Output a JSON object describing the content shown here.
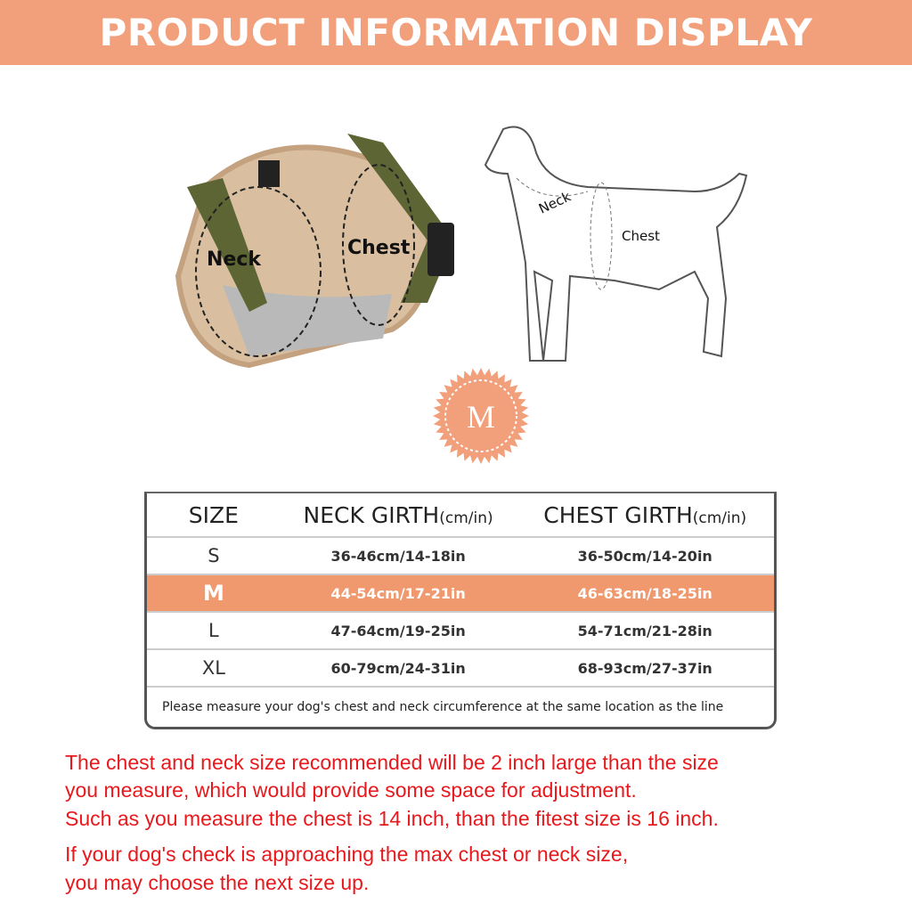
{
  "banner": {
    "title": "PRODUCT INFORMATION DISPLAY",
    "color": "#f2a07b"
  },
  "harness_labels": {
    "neck": "Neck",
    "chest": "Chest"
  },
  "dog_labels": {
    "neck": "Neck",
    "chest": "Chest"
  },
  "badge": {
    "label": "M",
    "color": "#f2a07b"
  },
  "size_table": {
    "headers": {
      "size": "SIZE",
      "neck": "NECK GIRTH",
      "neck_unit": "(cm/in)",
      "chest": "CHEST GIRTH",
      "chest_unit": "(cm/in)"
    },
    "rows": [
      {
        "size": "S",
        "neck": "36-46cm/14-18in",
        "chest": "36-50cm/14-20in"
      },
      {
        "size": "M",
        "neck": "44-54cm/17-21in",
        "chest": "46-63cm/18-25in",
        "highlight": true
      },
      {
        "size": "L",
        "neck": "47-64cm/19-25in",
        "chest": "54-71cm/21-28in"
      },
      {
        "size": "XL",
        "neck": "60-79cm/24-31in",
        "chest": "68-93cm/27-37in"
      }
    ],
    "note": "Please measure your dog's chest and neck circumference at the same location as the line"
  },
  "notes": [
    "The chest and neck size recommended will be 2 inch large than the size",
    "you measure, which would provide some space for adjustment.",
    "Such as  you measure the chest is 14 inch, than the fitest size is 16 inch.",
    "If your dog's check is approaching the max chest or neck size,",
    "you may choose the next size up."
  ]
}
